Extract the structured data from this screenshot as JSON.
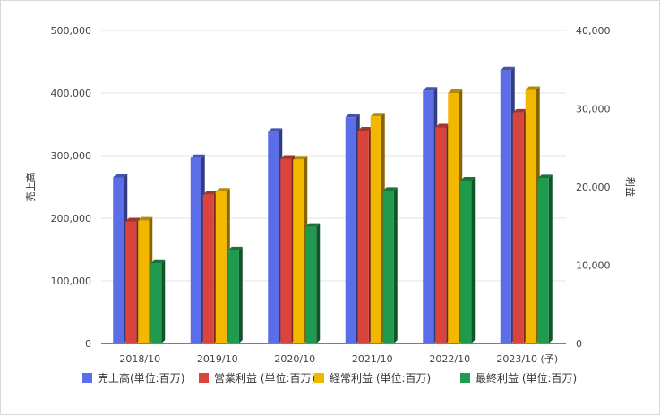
{
  "chart_data": {
    "type": "bar",
    "categories": [
      "2018/10",
      "2019/10",
      "2020/10",
      "2021/10",
      "2022/10",
      "2023/10 (予)"
    ],
    "y_left": {
      "label": "売上高",
      "ylim": [
        0,
        500000
      ],
      "ticks": [
        "0",
        "100,000",
        "200,000",
        "300,000",
        "400,000",
        "500,000"
      ]
    },
    "y_right": {
      "label": "利益",
      "ylim": [
        0,
        40000
      ],
      "ticks": [
        "0",
        "10,000",
        "20,000",
        "30,000",
        "40,000"
      ]
    },
    "grid": true,
    "legend_position": "bottom",
    "series": [
      {
        "name": "売上高(単位:百万)",
        "axis": "left",
        "color": "#5b6ee8",
        "values": [
          265000,
          296000,
          338000,
          361000,
          404000,
          436000
        ]
      },
      {
        "name": "営業利益 (単位:百万)",
        "axis": "right",
        "color": "#d9453d",
        "values": [
          15600,
          19000,
          23600,
          27200,
          27600,
          29500
        ]
      },
      {
        "name": "経常利益 (単位:百万)",
        "axis": "right",
        "color": "#f2b800",
        "values": [
          15700,
          19400,
          23500,
          29000,
          32000,
          32400
        ]
      },
      {
        "name": "最終利益 (単位:百万)",
        "axis": "right",
        "color": "#1f9b4e",
        "values": [
          10200,
          11900,
          14900,
          19500,
          20800,
          21100
        ]
      }
    ]
  }
}
